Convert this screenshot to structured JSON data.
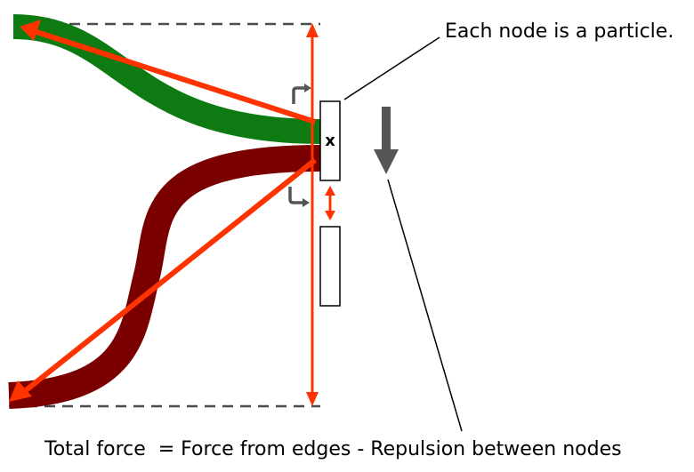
{
  "labels": {
    "node_callout": "Each node is a particle.",
    "equation": "Total force  = Force from edges - Repulsion between nodes",
    "node_mark": "x"
  },
  "colors": {
    "green_edge": "#0d7a12",
    "red_edge": "#7a0000",
    "force_arrow": "#ff3300",
    "dashed_guide": "#4a4a4a",
    "gray_arrow": "#555555",
    "node_fill": "#ffffff",
    "node_stroke": "#000000",
    "leader_line": "#000000"
  },
  "icons": {
    "down_arrow": "down-arrow-icon",
    "curved_arrows": "curved-arrow-icon"
  }
}
